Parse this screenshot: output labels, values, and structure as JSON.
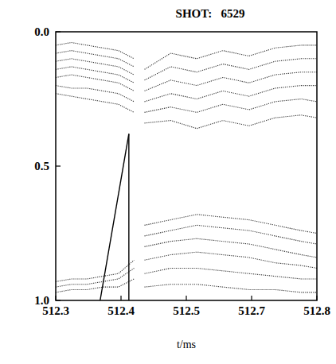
{
  "chart_data": {
    "type": "contour",
    "title": "SHOT:   6529",
    "x_label": "t/ms",
    "xlim": [
      512.3,
      512.8
    ],
    "xticks": [
      {
        "value": 512.3,
        "label": "512.3"
      },
      {
        "value": 512.425,
        "label": "512.4"
      },
      {
        "value": 512.55,
        "label": "512.5"
      },
      {
        "value": 512.675,
        "label": "512.7"
      },
      {
        "value": 512.8,
        "label": "512.8"
      }
    ],
    "ylim": [
      1.0,
      0.0
    ],
    "yticks": [
      {
        "value": 0.0,
        "label": "0.0"
      },
      0.5,
      {
        "value": 1.0,
        "label": "1.0"
      }
    ],
    "grid": false,
    "series": [
      {
        "color": "#333333",
        "line_style": "dotted",
        "x": [
          512.3,
          512.33,
          512.36,
          512.39,
          512.42,
          512.45
        ],
        "values": [
          0.05,
          0.04,
          0.05,
          0.06,
          0.07,
          0.1
        ]
      },
      {
        "color": "#333333",
        "line_style": "dotted",
        "x": [
          512.3,
          512.33,
          512.36,
          512.39,
          512.42,
          512.45
        ],
        "values": [
          0.08,
          0.07,
          0.08,
          0.09,
          0.1,
          0.13
        ]
      },
      {
        "color": "#333333",
        "line_style": "dotted",
        "x": [
          512.3,
          512.33,
          512.36,
          512.39,
          512.42,
          512.45
        ],
        "values": [
          0.11,
          0.1,
          0.11,
          0.12,
          0.13,
          0.16
        ]
      },
      {
        "color": "#333333",
        "line_style": "dotted",
        "x": [
          512.3,
          512.33,
          512.36,
          512.39,
          512.42,
          512.45
        ],
        "values": [
          0.14,
          0.13,
          0.14,
          0.15,
          0.16,
          0.19
        ]
      },
      {
        "color": "#333333",
        "line_style": "dotted",
        "x": [
          512.3,
          512.33,
          512.36,
          512.39,
          512.42,
          512.45
        ],
        "values": [
          0.17,
          0.16,
          0.17,
          0.18,
          0.19,
          0.22
        ]
      },
      {
        "color": "#333333",
        "line_style": "dotted",
        "x": [
          512.3,
          512.33,
          512.36,
          512.39,
          512.42,
          512.45
        ],
        "values": [
          0.2,
          0.21,
          0.21,
          0.22,
          0.23,
          0.26
        ]
      },
      {
        "color": "#333333",
        "line_style": "dotted",
        "x": [
          512.3,
          512.33,
          512.36,
          512.39,
          512.42,
          512.45
        ],
        "values": [
          0.23,
          0.24,
          0.25,
          0.26,
          0.27,
          0.3
        ]
      },
      {
        "color": "#333333",
        "line_style": "dotted",
        "x": [
          512.47,
          512.52,
          512.57,
          512.62,
          512.67,
          512.72,
          512.77,
          512.8
        ],
        "values": [
          0.14,
          0.08,
          0.1,
          0.07,
          0.09,
          0.06,
          0.05,
          0.05
        ]
      },
      {
        "color": "#333333",
        "line_style": "dotted",
        "x": [
          512.47,
          512.52,
          512.57,
          512.62,
          512.67,
          512.72,
          512.77,
          512.8
        ],
        "values": [
          0.18,
          0.13,
          0.15,
          0.12,
          0.14,
          0.11,
          0.1,
          0.1
        ]
      },
      {
        "color": "#333333",
        "line_style": "dotted",
        "x": [
          512.47,
          512.52,
          512.57,
          512.62,
          512.67,
          512.72,
          512.77,
          512.8
        ],
        "values": [
          0.22,
          0.18,
          0.2,
          0.17,
          0.19,
          0.16,
          0.15,
          0.15
        ]
      },
      {
        "color": "#333333",
        "line_style": "dotted",
        "x": [
          512.47,
          512.52,
          512.57,
          512.62,
          512.67,
          512.72,
          512.77,
          512.8
        ],
        "values": [
          0.26,
          0.23,
          0.25,
          0.22,
          0.24,
          0.21,
          0.2,
          0.2
        ]
      },
      {
        "color": "#333333",
        "line_style": "dotted",
        "x": [
          512.47,
          512.52,
          512.57,
          512.62,
          512.67,
          512.72,
          512.77,
          512.8
        ],
        "values": [
          0.3,
          0.28,
          0.3,
          0.27,
          0.29,
          0.26,
          0.25,
          0.26
        ]
      },
      {
        "color": "#333333",
        "line_style": "dotted",
        "x": [
          512.47,
          512.52,
          512.57,
          512.62,
          512.67,
          512.72,
          512.77,
          512.8
        ],
        "values": [
          0.34,
          0.33,
          0.36,
          0.33,
          0.35,
          0.32,
          0.31,
          0.32
        ]
      },
      {
        "color": "#333333",
        "line_style": "dotted",
        "x": [
          512.3,
          512.33,
          512.36,
          512.39,
          512.42,
          512.45
        ],
        "values": [
          0.93,
          0.92,
          0.92,
          0.91,
          0.9,
          0.85
        ]
      },
      {
        "color": "#333333",
        "line_style": "dotted",
        "x": [
          512.3,
          512.33,
          512.36,
          512.39,
          512.42,
          512.45
        ],
        "values": [
          0.95,
          0.94,
          0.94,
          0.93,
          0.92,
          0.88
        ]
      },
      {
        "color": "#333333",
        "line_style": "dotted",
        "x": [
          512.3,
          512.33,
          512.36,
          512.39,
          512.42,
          512.45
        ],
        "values": [
          0.97,
          0.96,
          0.96,
          0.95,
          0.95,
          0.92
        ]
      },
      {
        "color": "#333333",
        "line_style": "dotted",
        "x": [
          512.47,
          512.52,
          512.57,
          512.62,
          512.67,
          512.72,
          512.77,
          512.8
        ],
        "values": [
          0.72,
          0.7,
          0.68,
          0.69,
          0.7,
          0.72,
          0.74,
          0.75
        ]
      },
      {
        "color": "#333333",
        "line_style": "dotted",
        "x": [
          512.47,
          512.52,
          512.57,
          512.62,
          512.67,
          512.72,
          512.77,
          512.8
        ],
        "values": [
          0.76,
          0.74,
          0.72,
          0.73,
          0.74,
          0.76,
          0.78,
          0.79
        ]
      },
      {
        "color": "#333333",
        "line_style": "dotted",
        "x": [
          512.47,
          512.52,
          512.57,
          512.62,
          512.67,
          512.72,
          512.77,
          512.8
        ],
        "values": [
          0.8,
          0.78,
          0.77,
          0.78,
          0.79,
          0.81,
          0.83,
          0.84
        ]
      },
      {
        "color": "#333333",
        "line_style": "dotted",
        "x": [
          512.47,
          512.52,
          512.57,
          512.62,
          512.67,
          512.72,
          512.77,
          512.8
        ],
        "values": [
          0.85,
          0.83,
          0.82,
          0.83,
          0.84,
          0.86,
          0.87,
          0.88
        ]
      },
      {
        "color": "#333333",
        "line_style": "dotted",
        "x": [
          512.47,
          512.52,
          512.57,
          512.62,
          512.67,
          512.72,
          512.77,
          512.8
        ],
        "values": [
          0.9,
          0.88,
          0.88,
          0.89,
          0.9,
          0.91,
          0.92,
          0.92
        ]
      },
      {
        "color": "#333333",
        "line_style": "dotted",
        "x": [
          512.47,
          512.52,
          512.57,
          512.62,
          512.67,
          512.72,
          512.77,
          512.8
        ],
        "values": [
          0.95,
          0.94,
          0.94,
          0.95,
          0.96,
          0.96,
          0.97,
          0.97
        ]
      },
      {
        "color": "#000000",
        "line_style": "solid",
        "x": [
          512.385,
          512.44
        ],
        "values": [
          1.0,
          0.38
        ]
      },
      {
        "color": "#000000",
        "line_style": "solid",
        "x": [
          512.44,
          512.44
        ],
        "values": [
          0.38,
          1.0
        ]
      }
    ]
  }
}
